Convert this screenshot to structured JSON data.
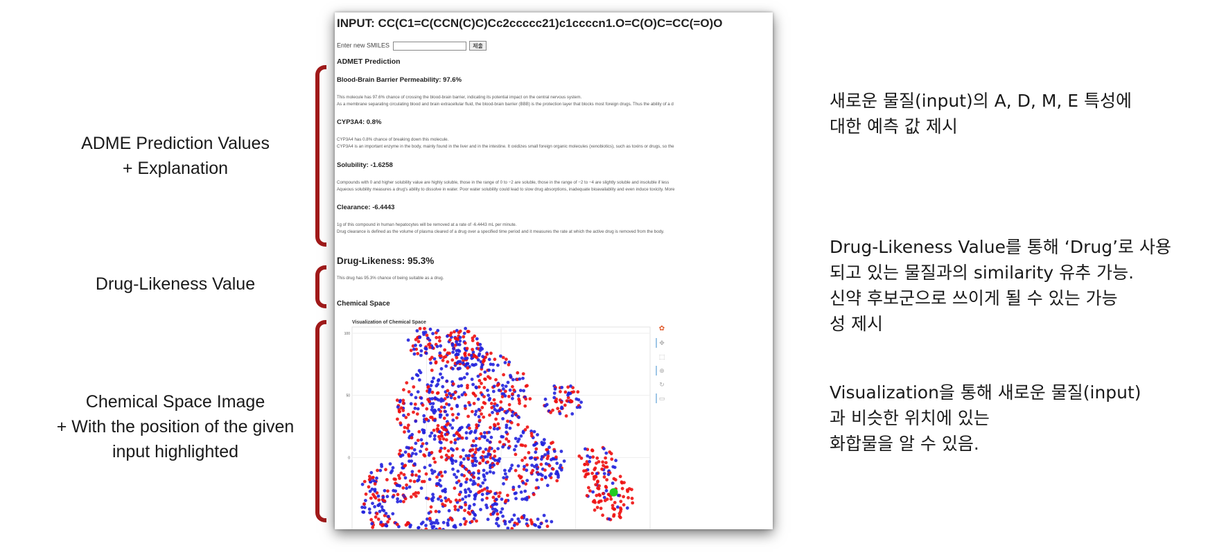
{
  "left_annotations": {
    "adme": [
      "ADME Prediction Values",
      "+ Explanation"
    ],
    "druglikeness": "Drug-Likeness Value",
    "chemical_space": [
      "Chemical Space Image",
      "+ With the position of the given",
      "input highlighted"
    ]
  },
  "right_annotations": {
    "adme": [
      "새로운 물질(input)의 A, D, M, E 특성에",
      "대한 예측 값 제시"
    ],
    "druglikeness": [
      "Drug-Likeness Value를 통해 ‘Drug’로 사용",
      "되고 있는 물질과의 similarity 유추 가능.",
      "신약 후보군으로 쓰이게 될 수 있는 가능",
      "성 제시"
    ],
    "visualization": [
      "Visualization을 통해 새로운 물질(input)",
      "과 비슷한 위치에 있는",
      "화합물을 알 수 있음."
    ]
  },
  "page": {
    "input_title": "INPUT: CC(C1=C(CCN(C)C)Cc2ccccc21)c1ccccn1.O=C(O)C=CC(=O)O",
    "form": {
      "label": "Enter new SMILES",
      "value": "",
      "submit_label": "제출"
    },
    "admet_heading": "ADMET Prediction",
    "bbb": {
      "heading": "Blood-Brain Barrier Permeability: 97.6%",
      "line1": "This molecule has 97.6% chance of crossing the blood-brain barrier, indicating its potential impact on the central nervous system.",
      "line2": "As a membrane separating circulating blood and brain extracellular fluid, the blood-brain barrier (BBB) is the protection layer that blocks most foreign drugs. Thus the ability of a d"
    },
    "cyp": {
      "heading": "CYP3A4: 0.8%",
      "line1": "CYP3A4 has 0.8% chance of breaking down this molecule.",
      "line2": "CYP3A4 is an important enzyme in the body, mainly found in the liver and in the intestine. It oxidizes small foreign organic molecules (xenobiotics), such as toxins or drugs, so the"
    },
    "solubility": {
      "heading": "Solubility: -1.6258",
      "line1": "Compounds with 0 and higher solubility value are highly soluble, those in the range of 0 to −2 are soluble, those in the range of −2 to −4 are slightly soluble and insoluble if less",
      "line2": "Aqueous solubility measures a drug's ability to dissolve in water. Poor water solubility could lead to slow drug absorptions, inadequate bioavailablity and even induce toxicity. More"
    },
    "clearance": {
      "heading": "Clearance: -6.4443",
      "line1": "1g of this compound in human hepatocytes will be removed at a rate of -6.4443 mL per minute.",
      "line2": "Drug clearance is defined as the volume of plasma cleared of a drug over a specified time period and it measures the rate at which the active drug is removed from the body."
    },
    "druglikeness": {
      "heading": "Drug-Likeness: 95.3%",
      "line1": "This drug has 95.3% chance of being suitable as a drug."
    },
    "chemical_space_heading": "Chemical Space"
  },
  "chart_data": {
    "type": "scatter",
    "title": "Visualization of Chemical Space",
    "xlabel": "",
    "ylabel": "",
    "ylim": [
      -60,
      105
    ],
    "xlim": [
      -110,
      95
    ],
    "ytick_labels": [
      "100",
      "50",
      "0"
    ],
    "grid": true,
    "colors": {
      "set_a": "#ee1111",
      "set_b": "#2222dd",
      "input": "#22cc22"
    },
    "input_point": {
      "x": 70,
      "y": -28
    },
    "toolbar_icons": [
      "bokeh-logo-icon",
      "pan-icon",
      "box-zoom-icon",
      "wheel-zoom-icon",
      "reset-icon",
      "save-icon"
    ]
  }
}
